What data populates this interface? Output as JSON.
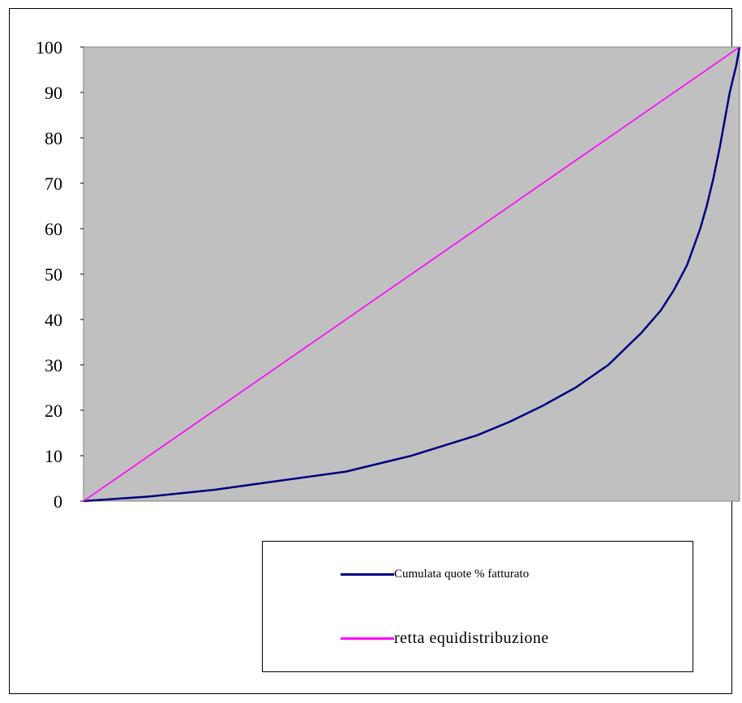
{
  "chart_data": {
    "type": "line",
    "title": "",
    "xlabel": "",
    "ylabel": "",
    "ylim": [
      0,
      100
    ],
    "xlim": [
      0,
      100
    ],
    "y_ticks": [
      "0",
      "10",
      "20",
      "30",
      "40",
      "50",
      "60",
      "70",
      "80",
      "90",
      "100"
    ],
    "x_tick_labels": false,
    "grid": false,
    "plot_background": "#c0c0c0",
    "legend_position": "bottom",
    "series": [
      {
        "name": "Cumulata quote % fatturato",
        "color": "#000080",
        "x": [
          0,
          3,
          10,
          20,
          30,
          40,
          50,
          60,
          65,
          70,
          75,
          80,
          85,
          88,
          90,
          92,
          94,
          95,
          96,
          97,
          98,
          98.5,
          99,
          99.5,
          100
        ],
        "y": [
          0,
          0.3,
          1,
          2.5,
          4.5,
          6.5,
          10,
          14.5,
          17.5,
          21,
          25,
          30,
          37,
          42,
          46.5,
          52,
          60,
          65,
          71,
          78,
          86,
          90,
          93,
          96,
          100
        ]
      },
      {
        "name": "retta equidistribuzione",
        "color": "#ff00ff",
        "x": [
          0,
          100
        ],
        "y": [
          0,
          100
        ]
      }
    ]
  },
  "legend": {
    "series_1_label": "Cumulata quote % fatturato",
    "series_2_label": "retta equidistribuzione"
  }
}
